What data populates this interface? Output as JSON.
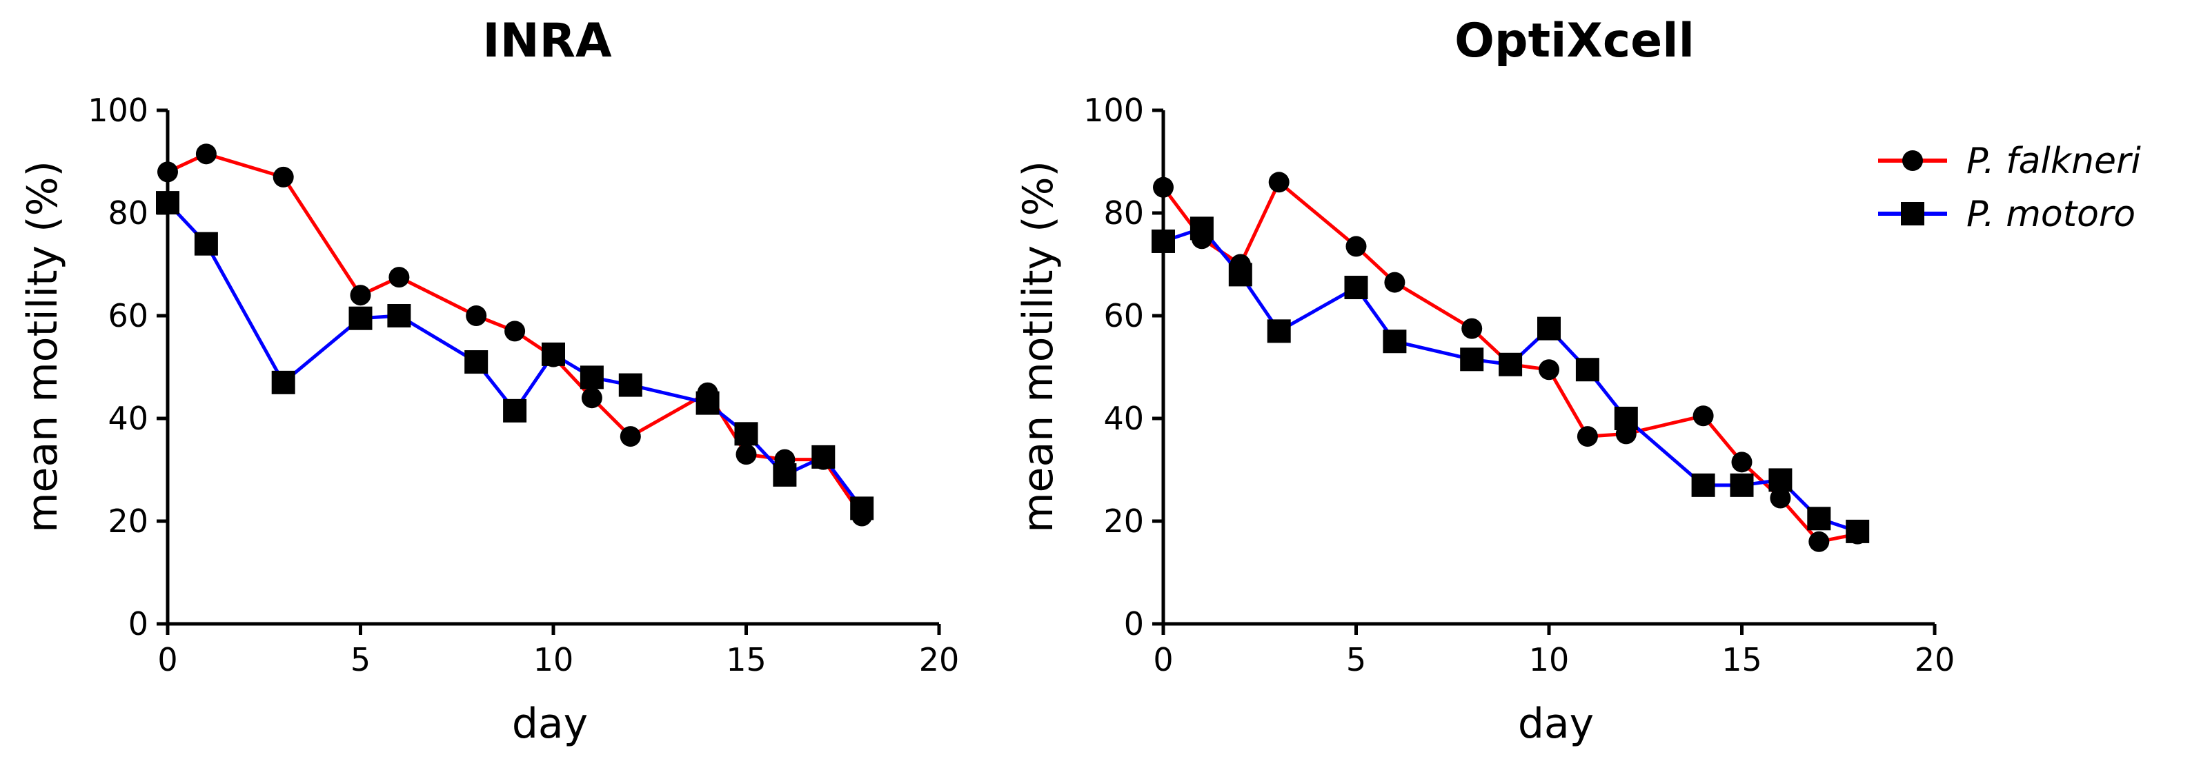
{
  "chart_data": [
    {
      "type": "line",
      "title": "INRA",
      "xlabel": "day",
      "ylabel": "mean motility (%)",
      "xlim": [
        0,
        20
      ],
      "ylim": [
        0,
        100
      ],
      "xticks": [
        0,
        5,
        10,
        15,
        20
      ],
      "yticks": [
        0,
        20,
        40,
        60,
        80,
        100
      ],
      "grid": false,
      "series": [
        {
          "name": "P. falkneri",
          "color": "#ff0000",
          "marker": "circle",
          "x": [
            0,
            1,
            3,
            5,
            6,
            8,
            9,
            10,
            11,
            12,
            14,
            15,
            16,
            17,
            18
          ],
          "y": [
            88,
            91.5,
            87,
            64,
            67.5,
            60,
            57,
            52,
            44,
            36.5,
            45,
            33,
            32,
            32,
            21
          ]
        },
        {
          "name": "P. motoro",
          "color": "#0000ff",
          "marker": "square",
          "x": [
            0,
            1,
            3,
            5,
            6,
            8,
            9,
            10,
            11,
            12,
            14,
            15,
            16,
            17,
            18
          ],
          "y": [
            82,
            74,
            47,
            59.5,
            60,
            51,
            41.5,
            52.5,
            48,
            46.5,
            43,
            37,
            29,
            32.5,
            22.5
          ]
        }
      ]
    },
    {
      "type": "line",
      "title": "OptiXcell",
      "xlabel": "day",
      "ylabel": "mean motility (%)",
      "xlim": [
        0,
        20
      ],
      "ylim": [
        0,
        100
      ],
      "xticks": [
        0,
        5,
        10,
        15,
        20
      ],
      "yticks": [
        0,
        20,
        40,
        60,
        80,
        100
      ],
      "grid": false,
      "legend_position": "top-right",
      "series": [
        {
          "name": "P. falkneri",
          "color": "#ff0000",
          "marker": "circle",
          "x": [
            0,
            1,
            2,
            3,
            5,
            6,
            8,
            9,
            10,
            11,
            12,
            14,
            15,
            16,
            17,
            18
          ],
          "y": [
            85,
            75,
            70,
            86,
            73.5,
            66.5,
            57.5,
            50.5,
            49.5,
            36.5,
            37,
            40.5,
            31.5,
            24.5,
            16,
            17.5
          ]
        },
        {
          "name": "P. motoro",
          "color": "#0000ff",
          "marker": "square",
          "x": [
            0,
            1,
            2,
            3,
            5,
            6,
            8,
            9,
            10,
            11,
            12,
            14,
            15,
            16,
            17,
            18
          ],
          "y": [
            74.5,
            77,
            68,
            57,
            65.5,
            55,
            51.5,
            50.5,
            57.5,
            49.5,
            40,
            27,
            27,
            28,
            20.5,
            18
          ]
        }
      ]
    }
  ]
}
